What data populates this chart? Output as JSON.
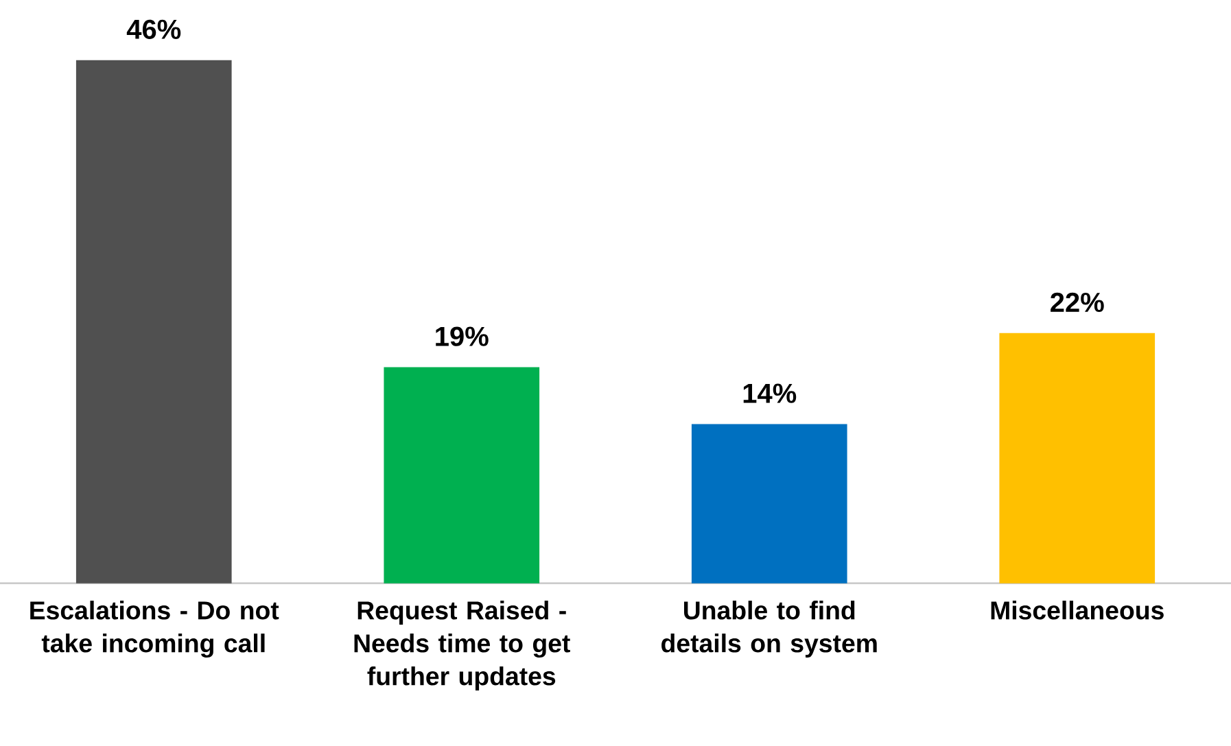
{
  "chart_data": {
    "type": "bar",
    "categories": [
      "Escalations - Do not take incoming call",
      "Request Raised - Needs time to get further updates",
      "Unable to find details on system",
      "Miscellaneous"
    ],
    "values": [
      46,
      19,
      14,
      22
    ],
    "colors": [
      "#505050",
      "#00b050",
      "#0070c0",
      "#ffc000"
    ],
    "value_labels": [
      "46%",
      "19%",
      "14%",
      "22%"
    ]
  }
}
